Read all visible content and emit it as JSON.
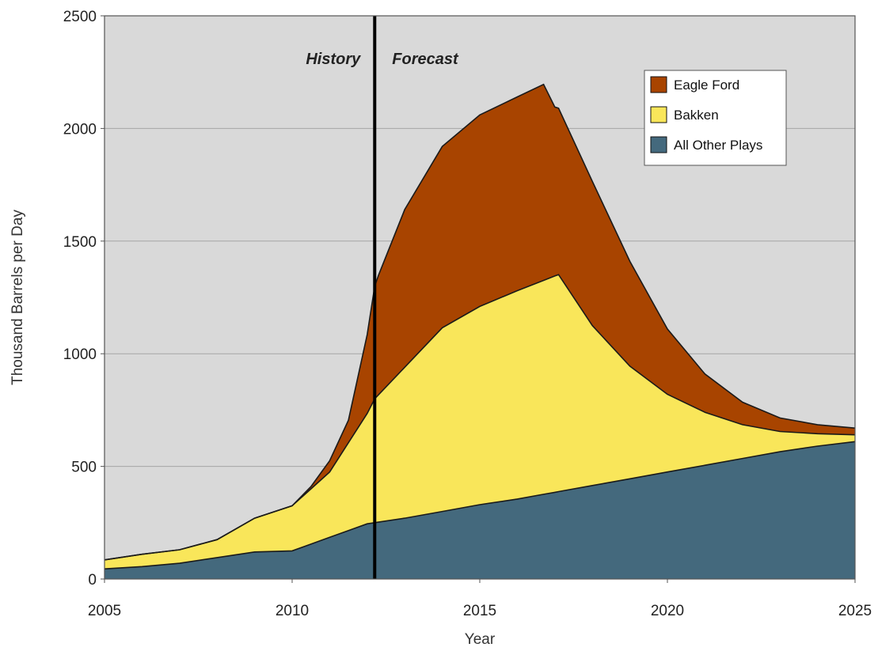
{
  "chart_data": {
    "type": "area",
    "stacked": true,
    "title": "",
    "xlabel": "Year",
    "ylabel": "Thousand Barrels per Day",
    "xlim": [
      2005,
      2025
    ],
    "ylim": [
      0,
      2500
    ],
    "x_ticks": [
      "2005",
      "2010",
      "2015",
      "2020",
      "2025"
    ],
    "y_ticks": [
      "0",
      "500",
      "1000",
      "1500",
      "2000",
      "2500"
    ],
    "grid": "horizontal",
    "legend_position": "top-right",
    "divider_year": 2012.2,
    "annotations": [
      "History",
      "Forecast"
    ],
    "series": [
      {
        "name": "All Other Plays",
        "color": "#44697d",
        "x": [
          2005,
          2006,
          2007,
          2008,
          2009,
          2010,
          2011,
          2012,
          2012.2,
          2013,
          2014,
          2015,
          2016,
          2017,
          2018,
          2019,
          2020,
          2021,
          2022,
          2023,
          2024,
          2025
        ],
        "values": [
          45,
          55,
          70,
          95,
          120,
          125,
          185,
          245,
          250,
          270,
          300,
          330,
          355,
          385,
          415,
          445,
          475,
          505,
          535,
          565,
          590,
          610
        ]
      },
      {
        "name": "Bakken",
        "color": "#f9e65a",
        "x": [
          2005,
          2006,
          2007,
          2008,
          2009,
          2010,
          2011,
          2012,
          2012.2,
          2013,
          2014,
          2015,
          2016,
          2017,
          2017.1,
          2018,
          2019,
          2020,
          2021,
          2022,
          2023,
          2024,
          2025
        ],
        "values": [
          40,
          55,
          60,
          80,
          150,
          200,
          290,
          490,
          550,
          670,
          815,
          880,
          925,
          960,
          963,
          710,
          500,
          345,
          235,
          150,
          90,
          55,
          30
        ]
      },
      {
        "name": "Eagle Ford",
        "color": "#a84400",
        "x": [
          2005,
          2010,
          2010.5,
          2011,
          2011.5,
          2012,
          2012.2,
          2012.3,
          2013,
          2014,
          2015,
          2016,
          2016.7,
          2017,
          2018,
          2019,
          2020,
          2021,
          2022,
          2023,
          2024,
          2025
        ],
        "values": [
          0,
          0,
          10,
          50,
          100,
          350,
          500,
          530,
          700,
          805,
          850,
          860,
          870,
          750,
          640,
          465,
          290,
          170,
          100,
          60,
          40,
          30
        ]
      }
    ]
  }
}
